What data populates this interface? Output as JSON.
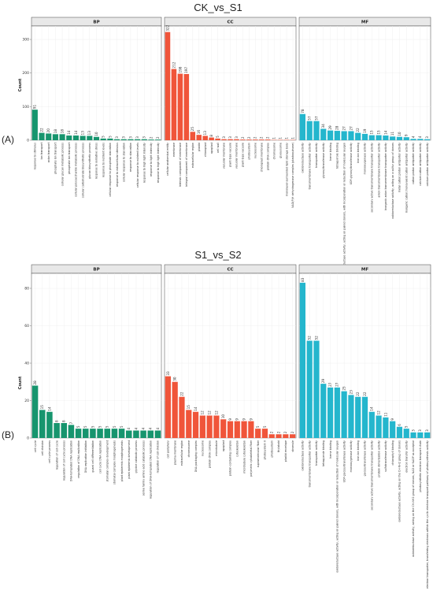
{
  "colors": {
    "BP": "#17956e",
    "CC": "#f0553a",
    "MF": "#24b6cd",
    "strip": "#e8e8e8",
    "grid": "#ececec"
  },
  "chart_data": [
    {
      "type": "bar",
      "title": "CK_vs_S1",
      "panel_tag": "(A)",
      "ylabel": "Count",
      "ylim": [
        0,
        340
      ],
      "yticks": [
        0,
        100,
        200,
        300
      ],
      "facets": [
        {
          "name": "BP",
          "categories": [
            "response to stimulus",
            "ion transport",
            "anion transport",
            "phosphate ion transport",
            "cellular glucan metabolic process",
            "phosphate ion transport",
            "cellular polysaccharide metabolic process",
            "cellular carbohydrate biosynthetic process",
            "glucan biosynthetic process",
            "response to oxidative stress",
            "response to nutrient levels",
            "cellular response to phosphate starvation",
            "response to extracellular stimulus",
            "cellular response to starvation",
            "response to starvation",
            "cellular response to nutrient levels",
            "response to high light intensity",
            "response to light intensity",
            "response to high light intensity"
          ],
          "values": [
            91,
            22,
            20,
            18,
            18,
            14,
            14,
            13,
            13,
            10,
            5,
            5,
            3,
            3,
            3,
            3,
            3,
            2,
            2
          ]
        },
        {
          "name": "CC",
          "categories": [
            "cellular anatomical entity",
            "membrane",
            "intrinsic component of membrane",
            "integral component of membrane",
            "extracellular region",
            "plastid",
            "chloroplast",
            "apoplast",
            "cell wall",
            "vacuolar membrane",
            "plant-type vacuole",
            "vacuolar membrane",
            "plant-type vacuole",
            "photosystem",
            "nucleosome",
            "chloroplast membrane",
            "protein-DNA complex",
            "chromosome",
            "glyoxysome",
            "monolayer-surrounded lipid storage body",
            "NAD(P)H dehydrogenase complex (plastoquinone)"
          ],
          "values": [
            322,
            212,
            198,
            197,
            25,
            16,
            13,
            8,
            5,
            3,
            3,
            3,
            2,
            2,
            2,
            2,
            2,
            1,
            1,
            1,
            1
          ]
        },
        {
          "name": "MF",
          "categories": [
            "oxidoreductase activity",
            "transmembrane transporter activity",
            "transporter activity",
            "glycosyltransferase activity",
            "heme binding",
            "tetrapyrrole binding",
            "oxidoreductase activity, acting on paired donors, with incorporation or reduction of molecular oxygen",
            "UDP-glycosyltransferase activity",
            "iron ion binding",
            "monooxygenase activity",
            "secondary active transmembrane transporter activity",
            "anion transmembrane transporter activity",
            "inorganic anion transmembrane transporter activity",
            "oxidoreductase activity, acting on a sulfur group of donors",
            "metal cation:proton antiporter activity",
            "inorganic cation:monovalent cation antiporter activity",
            "cation:proton antiporter activity",
            "calcium:cation antiporter activity",
            "calcium:proton antiporter activity"
          ],
          "values": [
            78,
            57,
            57,
            34,
            29,
            28,
            27,
            27,
            22,
            19,
            15,
            15,
            14,
            11,
            10,
            9,
            4,
            4,
            3
          ]
        }
      ]
    },
    {
      "type": "bar",
      "title": "S1_vs_S2",
      "panel_tag": "(B)",
      "ylabel": "Count",
      "ylim": [
        0,
        88
      ],
      "yticks": [
        0,
        20,
        40,
        60,
        80
      ],
      "facets": [
        {
          "name": "BP",
          "categories": [
            "cell cycle",
            "cell division",
            "cell cycle process",
            "regulation of cell cycle",
            "regulation of cell cycle process",
            "DNA-templated DNA replication",
            "regulation of DNA replication",
            "DNA replication initiation",
            "guard cell differentiation",
            "cell cycle DNA replication",
            "stomatal complex development",
            "stomatal complex morphogenesis",
            "plant epidermis morphogenesis",
            "plant epidermis development",
            "glycine catabolic process",
            "serine family amino acid catabolic process",
            "regulation of DNA-templated DNA replication",
            "regulation of cell division"
          ],
          "values": [
            28,
            15,
            14,
            8,
            8,
            7,
            5,
            5,
            5,
            5,
            5,
            5,
            5,
            4,
            4,
            4,
            4,
            4
          ]
        },
        {
          "name": "CC",
          "categories": [
            "cell periphery",
            "plasma membrane",
            "extracellular region",
            "chromosome",
            "DNA packaging complex",
            "nucleosome",
            "protein-DNA complex",
            "microtubule",
            "apoplast",
            "protein-containing complex",
            "cytoskeleton",
            "microtubule cytoskeleton",
            "polymeric cytoskeletal fiber",
            "supramolecular fiber",
            "photosystem II",
            "photosystem",
            "thylakoid",
            "plastid envelope",
            "stromule"
          ],
          "values": [
            33,
            30,
            22,
            15,
            14,
            12,
            12,
            12,
            10,
            9,
            9,
            9,
            9,
            5,
            5,
            2,
            2,
            2,
            2
          ]
        },
        {
          "name": "MF",
          "categories": [
            "oxidoreductase activity",
            "transmembrane transporter activity",
            "transporter activity",
            "tetrapyrrole binding",
            "heme binding",
            "oxidoreductase activity, acting on paired donors, with incorporation or reduction of molecular oxygen",
            "UDP-glycosyltransferase activity",
            "monooxygenase activity",
            "iron ion binding",
            "glycosyltransferase activity",
            "secondary active transmembrane transporter activity",
            "protein dimerization activity",
            "sulfotransferase activity",
            "chlorophyll binding",
            "oxidoreductase activity, acting on the CH-NH2 group of donors",
            "electron transfer activity",
            "oxidoreductase activity, acting on the CH-NH2 group of donors, NAD or NADP as acceptor",
            "photosynthetic electron transport chain",
            "electron transporter, transferring electrons within the cyclic electron transport pathway of photosynthesis activity"
          ],
          "values": [
            83,
            52,
            52,
            29,
            27,
            27,
            25,
            23,
            22,
            22,
            14,
            12,
            11,
            9,
            6,
            5,
            3,
            3,
            3
          ]
        }
      ]
    }
  ]
}
